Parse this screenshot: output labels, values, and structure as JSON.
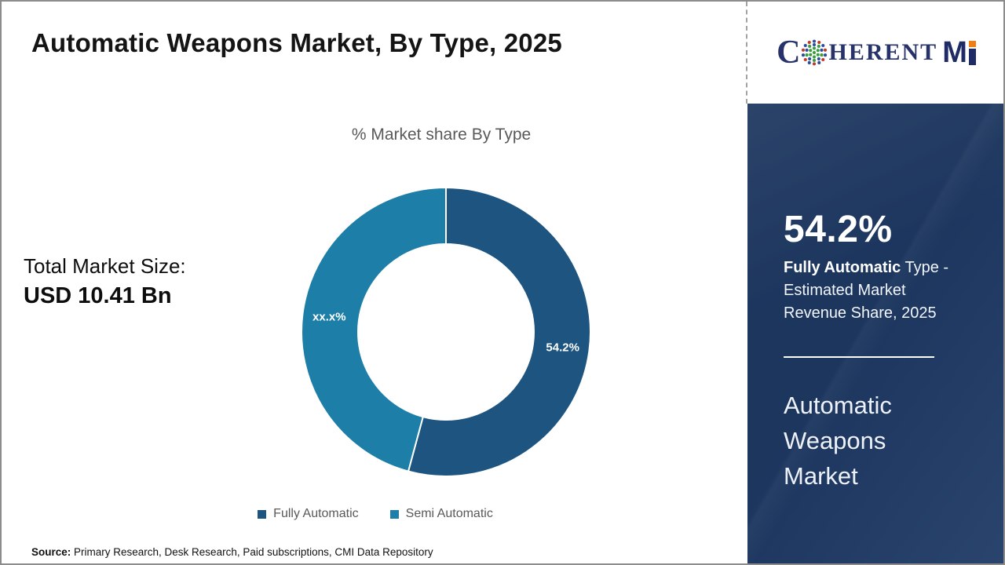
{
  "header": {
    "title": "Automatic Weapons Market, By Type, 2025"
  },
  "logo": {
    "c": "C",
    "herent": "HERENT",
    "m": "M"
  },
  "left_panel": {
    "label": "Total Market Size:",
    "value": "USD 10.41 Bn"
  },
  "chart_data": {
    "type": "pie",
    "donut": true,
    "title": "% Market share By Type",
    "legend_position": "bottom",
    "start_angle_deg": 0,
    "direction": "clockwise",
    "segments": [
      {
        "name": "Fully Automatic",
        "value": 54.2,
        "label": "54.2%",
        "color": "#1d5480"
      },
      {
        "name": "Semi Automatic",
        "value": 45.8,
        "label": "xx.x%",
        "color": "#1d7ea7"
      }
    ]
  },
  "sidebar": {
    "stat_value": "54.2%",
    "stat_desc_bold": "Fully Automatic",
    "stat_desc_rest": " Type - Estimated Market Revenue Share, 2025",
    "market_name": "Automatic Weapons Market",
    "bg_color": "#1e3a66"
  },
  "footer": {
    "source_label": "Source:",
    "source_text": " Primary Research, Desk Research, Paid subscriptions, CMI Data Repository"
  }
}
